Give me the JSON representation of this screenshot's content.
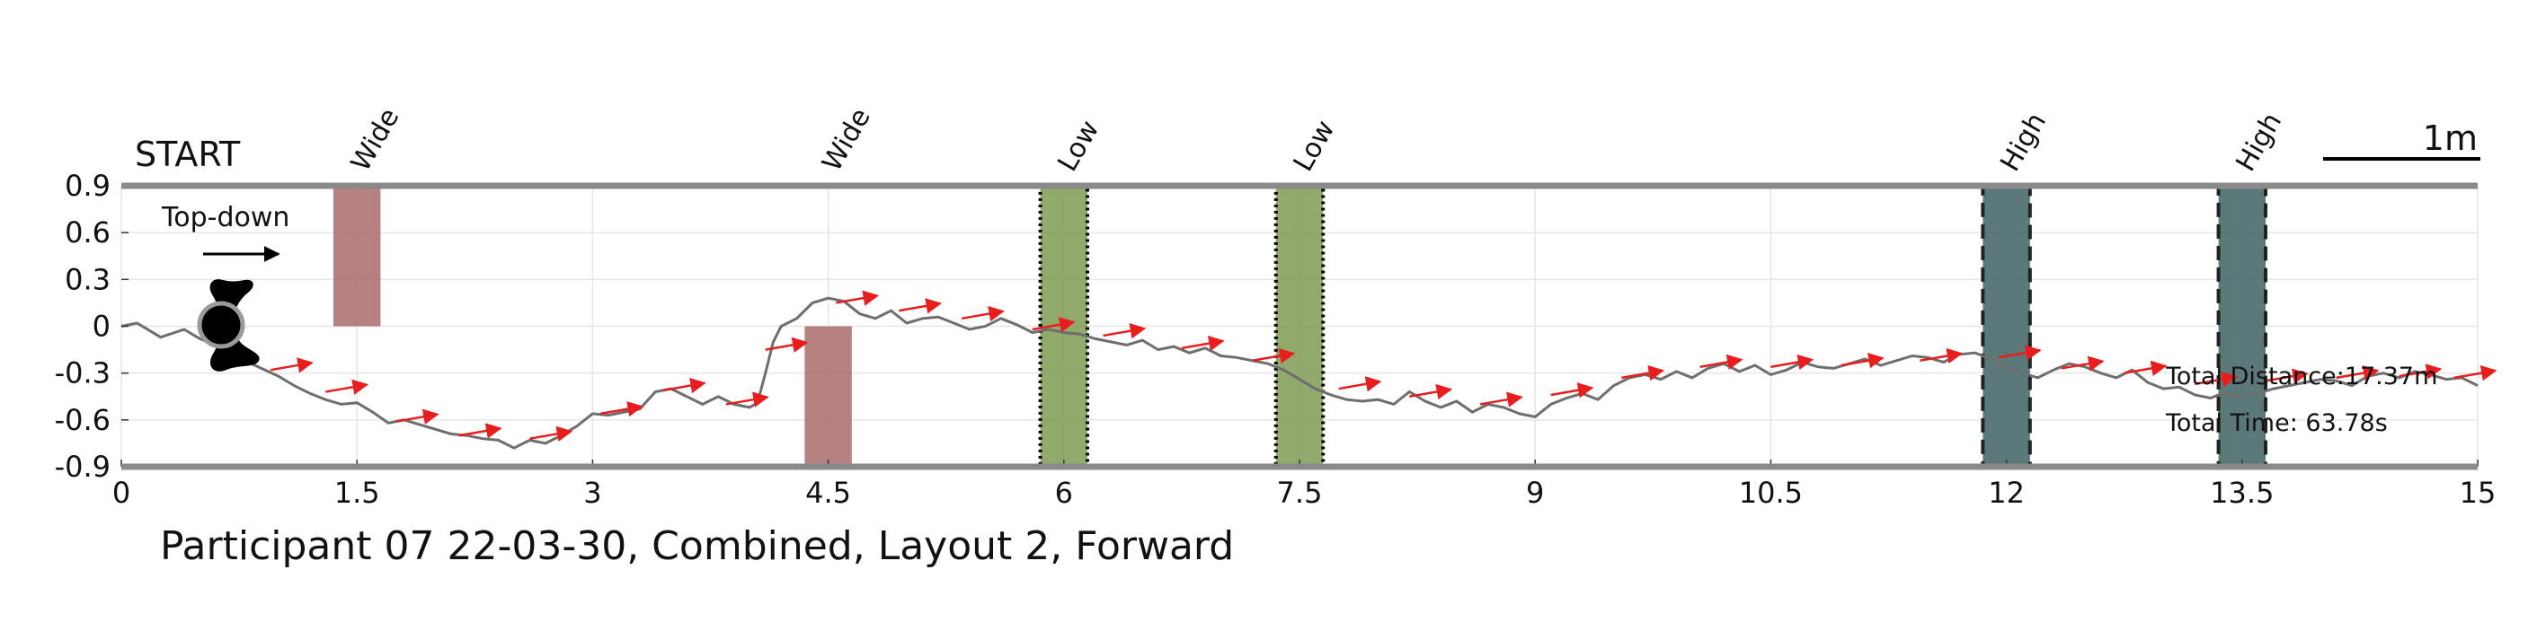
{
  "chart_data": {
    "type": "line",
    "title": "Participant 07 22-03-30, Combined, Layout 2, Forward",
    "start_label": "START",
    "orientation_label": "Top-down",
    "scale_label": "1m",
    "xlim": [
      0,
      15
    ],
    "ylim": [
      -0.9,
      0.9
    ],
    "grid": true,
    "x_ticks": [
      0,
      1.5,
      3,
      4.5,
      6,
      7.5,
      9,
      10.5,
      12,
      13.5,
      15
    ],
    "x_tick_labels": [
      "0",
      "1.5",
      "3",
      "4.5",
      "6",
      "7.5",
      "9",
      "10.5",
      "12",
      "13.5",
      "15"
    ],
    "y_ticks": [
      0.9,
      0.6,
      0.3,
      0,
      -0.3,
      -0.6,
      -0.9
    ],
    "y_tick_labels": [
      "0.9",
      "0.6",
      "0.3",
      "0",
      "-0.3",
      "-0.6",
      "-0.9"
    ],
    "summary": {
      "distance": "Total Distance:17.37m",
      "time": "Total Time: 63.78s"
    },
    "obstacles": [
      {
        "label": "Wide",
        "x0": 1.35,
        "x1": 1.65,
        "y0": 0.0,
        "y1": 0.9,
        "style": "wide",
        "color": "#a86b6b"
      },
      {
        "label": "Wide",
        "x0": 4.35,
        "x1": 4.65,
        "y0": -0.9,
        "y1": 0.0,
        "style": "wide",
        "color": "#a86b6b"
      },
      {
        "label": "Low",
        "x0": 5.85,
        "x1": 6.15,
        "y0": -0.9,
        "y1": 0.9,
        "style": "low",
        "color": "#7f9a52"
      },
      {
        "label": "Low",
        "x0": 7.35,
        "x1": 7.65,
        "y0": -0.9,
        "y1": 0.9,
        "style": "low",
        "color": "#7f9a52"
      },
      {
        "label": "High",
        "x0": 11.85,
        "x1": 12.15,
        "y0": -0.9,
        "y1": 0.9,
        "style": "high",
        "color": "#3f6263"
      },
      {
        "label": "High",
        "x0": 13.35,
        "x1": 13.65,
        "y0": -0.9,
        "y1": 0.9,
        "style": "high",
        "color": "#3f6263"
      }
    ],
    "series": [
      {
        "x": [
          0,
          0.1,
          0.25,
          0.4,
          0.5,
          0.6,
          0.7,
          0.85,
          1.0,
          1.1,
          1.2,
          1.3,
          1.4,
          1.5,
          1.6,
          1.7,
          1.8,
          1.9,
          2.0,
          2.1,
          2.2,
          2.3,
          2.4,
          2.5,
          2.6,
          2.7,
          2.8,
          2.9,
          3.0,
          3.1,
          3.2,
          3.3,
          3.4,
          3.5,
          3.6,
          3.7,
          3.8,
          3.9,
          4.0,
          4.05,
          4.1,
          4.15,
          4.2,
          4.3,
          4.4,
          4.5,
          4.6,
          4.7,
          4.8,
          4.9,
          5.0,
          5.1,
          5.2,
          5.3,
          5.4,
          5.5,
          5.6,
          5.7,
          5.8,
          5.9,
          6.0,
          6.1,
          6.2,
          6.3,
          6.4,
          6.5,
          6.6,
          6.7,
          6.8,
          6.9,
          7.0,
          7.1,
          7.2,
          7.3,
          7.4,
          7.5,
          7.6,
          7.7,
          7.8,
          7.9,
          8.0,
          8.1,
          8.2,
          8.3,
          8.4,
          8.5,
          8.6,
          8.7,
          8.8,
          8.9,
          9.0,
          9.1,
          9.2,
          9.3,
          9.4,
          9.5,
          9.6,
          9.7,
          9.8,
          9.9,
          10.0,
          10.1,
          10.2,
          10.3,
          10.4,
          10.5,
          10.6,
          10.7,
          10.8,
          10.9,
          11.0,
          11.1,
          11.2,
          11.3,
          11.4,
          11.5,
          11.6,
          11.7,
          11.8,
          11.9,
          12.0,
          12.1,
          12.2,
          12.3,
          12.4,
          12.5,
          12.6,
          12.7,
          12.8,
          12.9,
          13.0,
          13.1,
          13.2,
          13.3,
          13.4,
          13.5,
          13.6,
          13.7,
          13.8,
          13.9,
          14.0,
          14.1,
          14.2,
          14.3,
          14.4,
          14.5,
          14.6,
          14.7,
          14.8,
          14.9,
          15.0
        ],
        "y": [
          0.0,
          0.02,
          -0.07,
          -0.02,
          -0.08,
          -0.12,
          -0.18,
          -0.25,
          -0.32,
          -0.38,
          -0.43,
          -0.47,
          -0.5,
          -0.49,
          -0.55,
          -0.62,
          -0.6,
          -0.63,
          -0.66,
          -0.69,
          -0.7,
          -0.72,
          -0.73,
          -0.78,
          -0.73,
          -0.75,
          -0.7,
          -0.64,
          -0.56,
          -0.57,
          -0.55,
          -0.53,
          -0.42,
          -0.4,
          -0.45,
          -0.5,
          -0.45,
          -0.5,
          -0.52,
          -0.49,
          -0.3,
          -0.1,
          0.0,
          0.05,
          0.15,
          0.18,
          0.16,
          0.08,
          0.05,
          0.1,
          0.02,
          0.05,
          0.06,
          0.02,
          -0.02,
          0.0,
          0.05,
          0.01,
          -0.04,
          -0.02,
          -0.04,
          -0.05,
          -0.08,
          -0.1,
          -0.12,
          -0.09,
          -0.15,
          -0.13,
          -0.17,
          -0.14,
          -0.19,
          -0.2,
          -0.22,
          -0.24,
          -0.28,
          -0.34,
          -0.4,
          -0.44,
          -0.47,
          -0.48,
          -0.47,
          -0.5,
          -0.42,
          -0.48,
          -0.52,
          -0.48,
          -0.55,
          -0.5,
          -0.52,
          -0.56,
          -0.58,
          -0.5,
          -0.46,
          -0.43,
          -0.47,
          -0.38,
          -0.33,
          -0.31,
          -0.34,
          -0.29,
          -0.33,
          -0.27,
          -0.24,
          -0.29,
          -0.25,
          -0.31,
          -0.28,
          -0.23,
          -0.26,
          -0.27,
          -0.24,
          -0.21,
          -0.25,
          -0.22,
          -0.19,
          -0.2,
          -0.23,
          -0.18,
          -0.17,
          -0.21,
          -0.26,
          -0.3,
          -0.33,
          -0.28,
          -0.24,
          -0.26,
          -0.3,
          -0.33,
          -0.28,
          -0.36,
          -0.4,
          -0.39,
          -0.44,
          -0.46,
          -0.42,
          -0.45,
          -0.43,
          -0.4,
          -0.38,
          -0.36,
          -0.34,
          -0.35,
          -0.38,
          -0.32,
          -0.3,
          -0.33,
          -0.29,
          -0.31,
          -0.34,
          -0.33,
          -0.38
        ]
      }
    ],
    "heading_arrows": [
      {
        "x": 0.95,
        "y": -0.28
      },
      {
        "x": 1.3,
        "y": -0.42
      },
      {
        "x": 1.75,
        "y": -0.61
      },
      {
        "x": 2.15,
        "y": -0.7
      },
      {
        "x": 2.6,
        "y": -0.72
      },
      {
        "x": 3.05,
        "y": -0.56
      },
      {
        "x": 3.45,
        "y": -0.41
      },
      {
        "x": 3.85,
        "y": -0.5
      },
      {
        "x": 4.1,
        "y": -0.15
      },
      {
        "x": 4.55,
        "y": 0.15
      },
      {
        "x": 4.95,
        "y": 0.1
      },
      {
        "x": 5.35,
        "y": 0.05
      },
      {
        "x": 5.8,
        "y": -0.02
      },
      {
        "x": 6.25,
        "y": -0.06
      },
      {
        "x": 6.75,
        "y": -0.14
      },
      {
        "x": 7.2,
        "y": -0.22
      },
      {
        "x": 7.75,
        "y": -0.4
      },
      {
        "x": 8.2,
        "y": -0.45
      },
      {
        "x": 8.65,
        "y": -0.5
      },
      {
        "x": 9.1,
        "y": -0.44
      },
      {
        "x": 9.55,
        "y": -0.33
      },
      {
        "x": 10.05,
        "y": -0.26
      },
      {
        "x": 10.5,
        "y": -0.26
      },
      {
        "x": 10.95,
        "y": -0.25
      },
      {
        "x": 11.45,
        "y": -0.22
      },
      {
        "x": 11.95,
        "y": -0.2
      },
      {
        "x": 12.35,
        "y": -0.27
      },
      {
        "x": 12.75,
        "y": -0.3
      },
      {
        "x": 13.2,
        "y": -0.37
      },
      {
        "x": 13.65,
        "y": -0.35
      },
      {
        "x": 14.1,
        "y": -0.33
      },
      {
        "x": 14.5,
        "y": -0.32
      },
      {
        "x": 14.85,
        "y": -0.33
      }
    ],
    "colors": {
      "trajectory": "#6e6e6e",
      "arrows": "#e81e1e",
      "frame": "#8a8a8a",
      "grid": "#e6e6e6"
    }
  }
}
